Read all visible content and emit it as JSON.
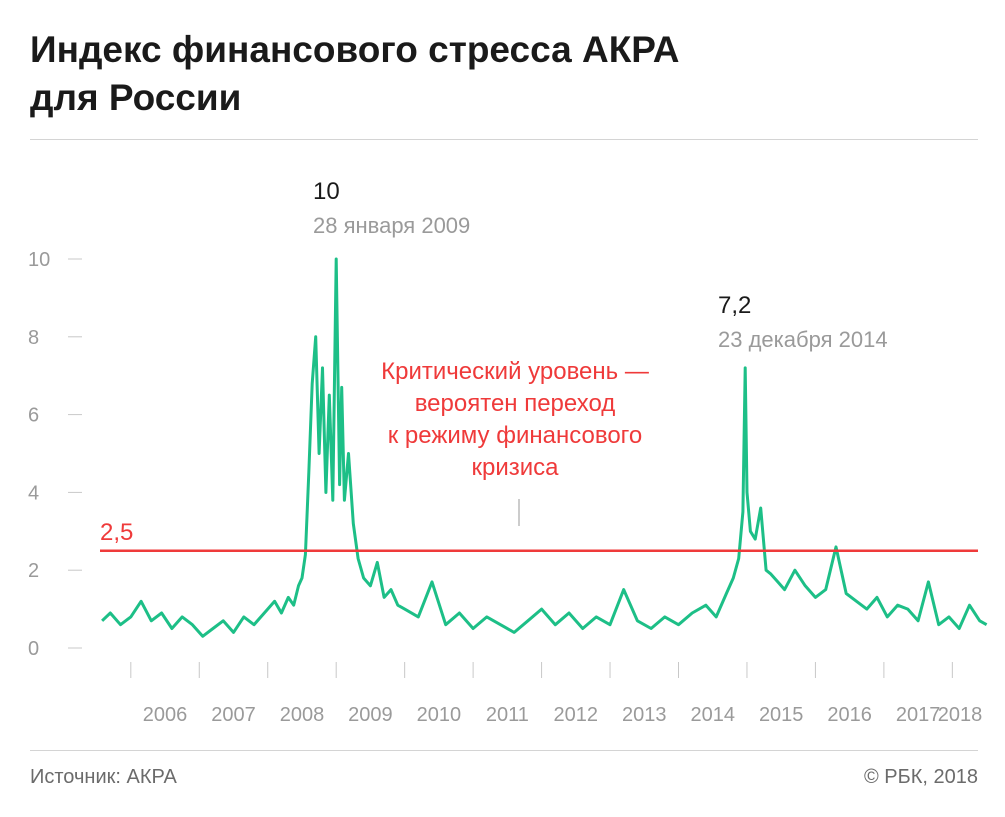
{
  "title_line1": "Индекс финансового стресса АКРА",
  "title_line2": "для России",
  "source": "Источник: АКРА",
  "copyright": "© РБК, 2018",
  "colors": {
    "series": "#1dbf87",
    "threshold": "#ef3a3a",
    "axis_text": "#9a9a9a",
    "title": "#1a1a1a"
  },
  "chart_data": {
    "type": "line",
    "title": "Индекс финансового стресса АКРА для России",
    "xlabel": "",
    "ylabel": "",
    "ylim": [
      0,
      10
    ],
    "yticks": [
      0,
      2,
      4,
      6,
      8,
      10
    ],
    "xlim": [
      2005.55,
      2018.55
    ],
    "x_tick_labels": [
      "2006",
      "2007",
      "2008",
      "2009",
      "2010",
      "2011",
      "2012",
      "2013",
      "2014",
      "2015",
      "2016",
      "2017",
      "2018"
    ],
    "grid": false,
    "legend": "none",
    "series": [
      {
        "x": [
          2005.58,
          2005.7,
          2005.85,
          2006.0,
          2006.15,
          2006.3,
          2006.45,
          2006.6,
          2006.75,
          2006.9,
          2007.05,
          2007.2,
          2007.35,
          2007.5,
          2007.65,
          2007.8,
          2007.95,
          2008.1,
          2008.2,
          2008.3,
          2008.38,
          2008.45,
          2008.5,
          2008.55,
          2008.6,
          2008.65,
          2008.7,
          2008.75,
          2008.8,
          2008.85,
          2008.9,
          2008.95,
          2009.0,
          2009.05,
          2009.08,
          2009.12,
          2009.18,
          2009.25,
          2009.32,
          2009.4,
          2009.5,
          2009.6,
          2009.7,
          2009.8,
          2009.9,
          2010.0,
          2010.2,
          2010.4,
          2010.6,
          2010.8,
          2011.0,
          2011.2,
          2011.4,
          2011.6,
          2011.8,
          2012.0,
          2012.2,
          2012.4,
          2012.6,
          2012.8,
          2013.0,
          2013.2,
          2013.4,
          2013.6,
          2013.8,
          2014.0,
          2014.2,
          2014.4,
          2014.55,
          2014.7,
          2014.8,
          2014.88,
          2014.94,
          2014.975,
          2015.0,
          2015.05,
          2015.12,
          2015.2,
          2015.28,
          2015.35,
          2015.45,
          2015.55,
          2015.7,
          2015.85,
          2016.0,
          2016.15,
          2016.3,
          2016.45,
          2016.6,
          2016.75,
          2016.9,
          2017.05,
          2017.2,
          2017.35,
          2017.5,
          2017.65,
          2017.8,
          2017.95,
          2018.1,
          2018.25,
          2018.4,
          2018.5
        ],
        "y": [
          0.7,
          0.9,
          0.6,
          0.8,
          1.2,
          0.7,
          0.9,
          0.5,
          0.8,
          0.6,
          0.3,
          0.5,
          0.7,
          0.4,
          0.8,
          0.6,
          0.9,
          1.2,
          0.9,
          1.3,
          1.1,
          1.6,
          1.8,
          2.4,
          4.5,
          6.8,
          8.0,
          5.0,
          7.2,
          4.0,
          6.5,
          3.8,
          10.0,
          4.2,
          6.7,
          3.8,
          5.0,
          3.2,
          2.3,
          1.8,
          1.6,
          2.2,
          1.3,
          1.5,
          1.1,
          1.0,
          0.8,
          1.7,
          0.6,
          0.9,
          0.5,
          0.8,
          0.6,
          0.4,
          0.7,
          1.0,
          0.6,
          0.9,
          0.5,
          0.8,
          0.6,
          1.5,
          0.7,
          0.5,
          0.8,
          0.6,
          0.9,
          1.1,
          0.8,
          1.4,
          1.8,
          2.3,
          3.5,
          7.2,
          4.0,
          3.0,
          2.8,
          3.6,
          2.0,
          1.9,
          1.7,
          1.5,
          2.0,
          1.6,
          1.3,
          1.5,
          2.6,
          1.4,
          1.2,
          1.0,
          1.3,
          0.8,
          1.1,
          1.0,
          0.7,
          1.7,
          0.6,
          0.8,
          0.5,
          1.1,
          0.7,
          0.6
        ]
      }
    ],
    "threshold": {
      "value": 2.5,
      "label": "2,5"
    },
    "threshold_note": [
      "Критический уровень —",
      "вероятен переход",
      "к режиму финансового",
      "кризиса"
    ],
    "annotations": [
      {
        "value_label": "10",
        "date_label": "28 января 2009",
        "x": 2009.08,
        "y": 10.0
      },
      {
        "value_label": "7,2",
        "date_label": "23 декабря 2014",
        "x": 2014.975,
        "y": 7.2
      }
    ]
  }
}
